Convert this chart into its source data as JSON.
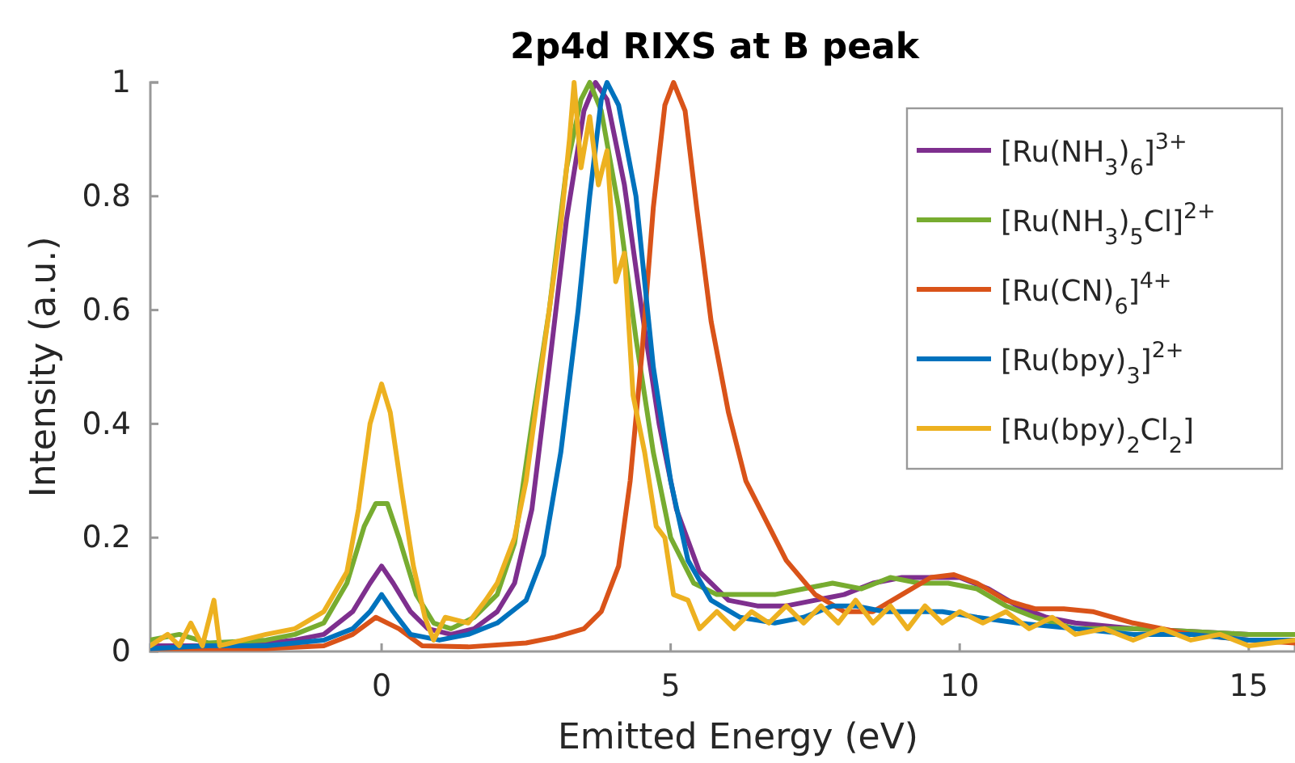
{
  "chart_data": {
    "type": "line",
    "title": "2p4d RIXS at B peak",
    "xlabel": "Emitted Energy (eV)",
    "ylabel": "Intensity (a.u.)",
    "xlim": [
      -4,
      15.8
    ],
    "xticks": [
      0,
      5,
      10,
      15
    ],
    "ylim": [
      0,
      1
    ],
    "yticks": [
      0,
      0.2,
      0.4,
      0.6,
      0.8,
      1
    ],
    "legend": "top right",
    "grid": false,
    "line_style": "solid",
    "marker": "none",
    "series": [
      {
        "name": "[Ru(NH$_{3}$)$_{6}$]$^{3+}$",
        "color": "#7e2f8e",
        "x": [
          -4,
          -3,
          -2,
          -1.5,
          -1,
          -0.5,
          -0.2,
          0,
          0.2,
          0.5,
          0.8,
          1.2,
          1.6,
          2,
          2.3,
          2.6,
          2.9,
          3.2,
          3.5,
          3.7,
          3.9,
          4.2,
          4.5,
          4.8,
          5.1,
          5.5,
          6,
          6.5,
          7,
          7.5,
          8,
          8.5,
          9,
          9.5,
          10,
          10.5,
          11,
          11.5,
          12,
          13,
          14,
          15,
          15.8
        ],
        "values": [
          0.01,
          0.01,
          0.015,
          0.02,
          0.03,
          0.07,
          0.12,
          0.15,
          0.12,
          0.07,
          0.04,
          0.03,
          0.04,
          0.07,
          0.12,
          0.25,
          0.5,
          0.76,
          0.95,
          1.0,
          0.97,
          0.82,
          0.6,
          0.4,
          0.25,
          0.14,
          0.09,
          0.08,
          0.08,
          0.09,
          0.1,
          0.12,
          0.13,
          0.13,
          0.13,
          0.11,
          0.08,
          0.06,
          0.05,
          0.04,
          0.035,
          0.03,
          0.03
        ]
      },
      {
        "name": "[Ru(NH$_{3}$)$_{5}$Cl]$^{2+}$",
        "color": "#77ac30",
        "x": [
          -4,
          -3.5,
          -3,
          -2,
          -1.5,
          -1,
          -0.6,
          -0.3,
          -0.1,
          0.1,
          0.3,
          0.6,
          0.9,
          1.2,
          1.6,
          2,
          2.3,
          2.6,
          2.9,
          3.2,
          3.45,
          3.6,
          3.8,
          4.1,
          4.4,
          4.7,
          5,
          5.4,
          5.8,
          6.3,
          6.8,
          7.3,
          7.8,
          8.3,
          8.8,
          9.3,
          9.8,
          10.3,
          10.8,
          11.3,
          12,
          13,
          14,
          15,
          15.8
        ],
        "values": [
          0.02,
          0.03,
          0.015,
          0.02,
          0.03,
          0.05,
          0.12,
          0.22,
          0.26,
          0.26,
          0.2,
          0.1,
          0.05,
          0.04,
          0.06,
          0.1,
          0.19,
          0.4,
          0.6,
          0.85,
          0.97,
          1.0,
          0.95,
          0.78,
          0.55,
          0.35,
          0.2,
          0.12,
          0.1,
          0.1,
          0.1,
          0.11,
          0.12,
          0.11,
          0.13,
          0.12,
          0.12,
          0.11,
          0.08,
          0.06,
          0.04,
          0.04,
          0.035,
          0.03,
          0.03
        ]
      },
      {
        "name": "[Ru(CN)$_{6}$]$^{4+}$",
        "color": "#d95319",
        "x": [
          -4,
          -2,
          -1,
          -0.5,
          -0.1,
          0.3,
          0.7,
          1.5,
          2.5,
          3,
          3.5,
          3.8,
          4.1,
          4.3,
          4.5,
          4.7,
          4.9,
          5.05,
          5.25,
          5.45,
          5.7,
          6,
          6.3,
          6.7,
          7,
          7.5,
          8,
          8.5,
          9,
          9.5,
          9.9,
          10.3,
          10.8,
          11.3,
          11.8,
          12.3,
          13,
          14,
          15,
          15.8
        ],
        "values": [
          0.005,
          0.005,
          0.01,
          0.03,
          0.06,
          0.04,
          0.01,
          0.008,
          0.015,
          0.025,
          0.04,
          0.07,
          0.15,
          0.3,
          0.52,
          0.78,
          0.96,
          1.0,
          0.95,
          0.78,
          0.58,
          0.42,
          0.3,
          0.22,
          0.16,
          0.1,
          0.07,
          0.07,
          0.1,
          0.13,
          0.135,
          0.12,
          0.09,
          0.075,
          0.075,
          0.07,
          0.05,
          0.03,
          0.02,
          0.015
        ]
      },
      {
        "name": "[Ru(bpy)$_{3}$]$^{2+}$",
        "color": "#0072bd",
        "x": [
          -4,
          -3,
          -2,
          -1,
          -0.5,
          -0.2,
          0,
          0.2,
          0.5,
          1,
          1.5,
          2,
          2.5,
          2.8,
          3.1,
          3.4,
          3.6,
          3.8,
          3.9,
          4.1,
          4.4,
          4.7,
          5,
          5.3,
          5.7,
          6.2,
          6.8,
          7.3,
          7.8,
          8.2,
          8.7,
          9.2,
          9.7,
          10.3,
          11,
          12,
          13,
          14,
          15,
          15.8
        ],
        "values": [
          0.005,
          0.01,
          0.01,
          0.02,
          0.04,
          0.07,
          0.1,
          0.07,
          0.03,
          0.02,
          0.03,
          0.05,
          0.09,
          0.17,
          0.35,
          0.6,
          0.8,
          0.97,
          1.0,
          0.96,
          0.8,
          0.5,
          0.3,
          0.16,
          0.09,
          0.06,
          0.05,
          0.06,
          0.08,
          0.08,
          0.07,
          0.07,
          0.07,
          0.06,
          0.05,
          0.04,
          0.03,
          0.03,
          0.02,
          0.02
        ]
      },
      {
        "name": "[Ru(bpy)$_{2}$Cl$_{2}$]",
        "color": "#edb120",
        "x": [
          -4,
          -3.7,
          -3.5,
          -3.3,
          -3.1,
          -2.9,
          -2.8,
          -2.4,
          -2,
          -1.5,
          -1,
          -0.6,
          -0.4,
          -0.2,
          0,
          0.15,
          0.35,
          0.55,
          0.75,
          0.9,
          1.1,
          1.5,
          1.8,
          2,
          2.3,
          2.5,
          2.7,
          2.9,
          3.1,
          3.25,
          3.33,
          3.45,
          3.6,
          3.75,
          3.9,
          4.05,
          4.2,
          4.35,
          4.55,
          4.75,
          4.9,
          5.05,
          5.3,
          5.5,
          5.8,
          6.1,
          6.4,
          6.7,
          7,
          7.3,
          7.6,
          7.9,
          8.2,
          8.5,
          8.8,
          9.1,
          9.4,
          9.7,
          10,
          10.4,
          10.8,
          11.2,
          11.6,
          12,
          12.5,
          13,
          13.5,
          14,
          14.5,
          15,
          15.8
        ],
        "values": [
          0.01,
          0.03,
          0.01,
          0.05,
          0.01,
          0.09,
          0.01,
          0.02,
          0.03,
          0.04,
          0.07,
          0.14,
          0.25,
          0.4,
          0.47,
          0.42,
          0.28,
          0.15,
          0.06,
          0.02,
          0.06,
          0.05,
          0.09,
          0.12,
          0.2,
          0.3,
          0.45,
          0.6,
          0.75,
          0.9,
          1.0,
          0.85,
          0.94,
          0.82,
          0.88,
          0.65,
          0.7,
          0.45,
          0.35,
          0.22,
          0.2,
          0.1,
          0.09,
          0.04,
          0.07,
          0.04,
          0.07,
          0.05,
          0.08,
          0.05,
          0.08,
          0.05,
          0.09,
          0.05,
          0.08,
          0.04,
          0.08,
          0.05,
          0.07,
          0.05,
          0.07,
          0.04,
          0.06,
          0.03,
          0.04,
          0.02,
          0.04,
          0.02,
          0.03,
          0.01,
          0.02
        ]
      }
    ]
  }
}
